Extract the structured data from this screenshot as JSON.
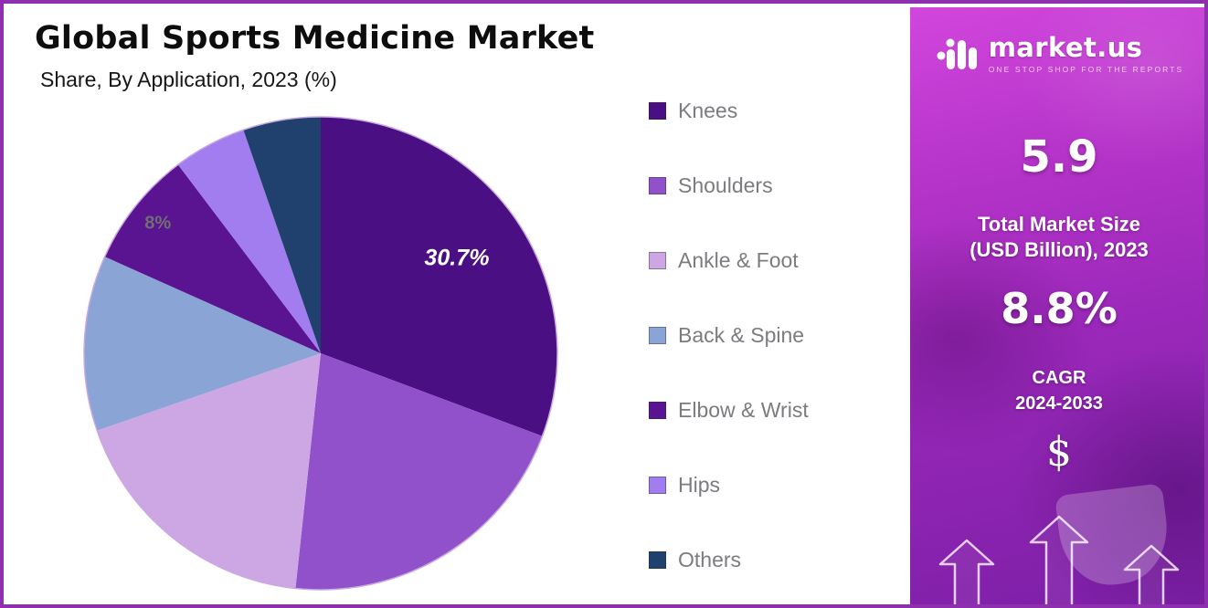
{
  "chart_data": {
    "type": "pie",
    "title": "Global Sports Medicine Market",
    "subtitle": "Share, By Application, 2023 (%)",
    "unit": "%",
    "start_angle_deg": 0,
    "direction": "clockwise",
    "legend_position": "right",
    "total": 100,
    "slices": [
      {
        "label": "Knees",
        "value": 30.7,
        "color": "#4a0f82",
        "data_label": "30.7%",
        "data_label_color": "#ffffff",
        "data_label_size": 25,
        "data_label_italic": true,
        "label_fraction": 0.7
      },
      {
        "label": "Shoulders",
        "value": 21.0,
        "color": "#9051cb",
        "data_label": "",
        "data_label_color": "",
        "data_label_size": 0,
        "data_label_italic": false,
        "label_fraction": 0.7
      },
      {
        "label": "Ankle & Foot",
        "value": 18.0,
        "color": "#cda7e3",
        "data_label": "",
        "data_label_color": "",
        "data_label_size": 0,
        "data_label_italic": false,
        "label_fraction": 0.7
      },
      {
        "label": "Back & Spine",
        "value": 12.0,
        "color": "#8ba4d6",
        "data_label": "",
        "data_label_color": "",
        "data_label_size": 0,
        "data_label_italic": false,
        "label_fraction": 0.7
      },
      {
        "label": "Elbow & Wrist",
        "value": 8.0,
        "color": "#5a1391",
        "data_label": "8%",
        "data_label_color": "#6e6e73",
        "data_label_size": 20,
        "data_label_italic": false,
        "label_fraction": 0.88
      },
      {
        "label": "Hips",
        "value": 5.0,
        "color": "#a17def",
        "data_label": "",
        "data_label_color": "",
        "data_label_size": 0,
        "data_label_italic": false,
        "label_fraction": 0.7
      },
      {
        "label": "Others",
        "value": 5.3,
        "color": "#20406e",
        "data_label": "",
        "data_label_color": "",
        "data_label_size": 0,
        "data_label_italic": false,
        "label_fraction": 0.7
      }
    ],
    "rim_color": "#c9a8e0"
  },
  "panel": {
    "brand": "market.us",
    "tagline": "ONE STOP SHOP FOR THE REPORTS",
    "stat1": {
      "value": "5.9",
      "line1": "Total Market Size",
      "line2": "(USD Billion), 2023"
    },
    "stat2": {
      "value": "8.8%",
      "line1": "CAGR",
      "line2": "2024-2033"
    },
    "currency": "$"
  }
}
